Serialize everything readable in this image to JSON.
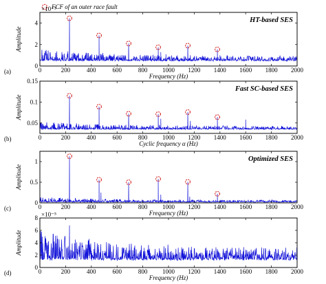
{
  "legend": {
    "label": "FCF of an outer race fault"
  },
  "chart_data": [
    {
      "type": "line",
      "panel_label": "(a)",
      "title": "HT-based SES",
      "xlabel": "Frequency (Hz)",
      "ylabel": "Amplitude",
      "scale_note": "×10⁻³",
      "xlim": [
        0,
        2000
      ],
      "ylim": [
        0,
        5
      ],
      "xticks": [
        0,
        200,
        400,
        600,
        800,
        1000,
        1200,
        1400,
        1600,
        1800,
        2000
      ],
      "yticks": [
        0,
        2,
        4
      ],
      "baseline": 0.5,
      "noise": 0.35,
      "peaks": [
        {
          "x": 230,
          "y": 4.45
        },
        {
          "x": 460,
          "y": 2.85
        },
        {
          "x": 690,
          "y": 2.1
        },
        {
          "x": 920,
          "y": 1.75
        },
        {
          "x": 1150,
          "y": 1.9
        },
        {
          "x": 1380,
          "y": 1.55
        }
      ],
      "extra_spikes": [
        {
          "x": 940,
          "y": 1.3
        },
        {
          "x": 980,
          "y": 1.1
        },
        {
          "x": 1170,
          "y": 1.0
        },
        {
          "x": 1400,
          "y": 1.0
        }
      ],
      "marker_indices": [
        0,
        1,
        2,
        3,
        4,
        5
      ]
    },
    {
      "type": "line",
      "panel_label": "(b)",
      "title": "Fast SC-based SES",
      "xlabel": "Cyclic frequency α (Hz)",
      "ylabel": "Amplitude",
      "scale_note": "",
      "xlim": [
        0,
        2000
      ],
      "ylim": [
        0.025,
        0.15
      ],
      "xticks": [
        0,
        200,
        400,
        600,
        800,
        1000,
        1200,
        1400,
        1600,
        1800,
        2000
      ],
      "yticks": [
        0.05,
        0.1,
        0.15
      ],
      "baseline": 0.035,
      "noise": 0.006,
      "peaks": [
        {
          "x": 230,
          "y": 0.115
        },
        {
          "x": 460,
          "y": 0.089
        },
        {
          "x": 690,
          "y": 0.072
        },
        {
          "x": 920,
          "y": 0.071
        },
        {
          "x": 1150,
          "y": 0.076
        },
        {
          "x": 1380,
          "y": 0.064
        }
      ],
      "extra_spikes": [
        {
          "x": 1600,
          "y": 0.058
        },
        {
          "x": 940,
          "y": 0.06
        },
        {
          "x": 1170,
          "y": 0.055
        }
      ],
      "marker_indices": [
        0,
        1,
        2,
        3,
        4,
        5
      ]
    },
    {
      "type": "line",
      "panel_label": "(c)",
      "title": "Optimized SES",
      "xlabel": "Frequency (Hz)",
      "ylabel": "Amplitude",
      "scale_note": "",
      "xlim": [
        0,
        2000
      ],
      "ylim": [
        0,
        1.25
      ],
      "xticks": [
        0,
        200,
        400,
        600,
        800,
        1000,
        1200,
        1400,
        1600,
        1800,
        2000
      ],
      "yticks": [
        0,
        0.5,
        1
      ],
      "baseline": 0.02,
      "noise": 0.04,
      "peaks": [
        {
          "x": 230,
          "y": 1.13
        },
        {
          "x": 460,
          "y": 0.56
        },
        {
          "x": 690,
          "y": 0.5
        },
        {
          "x": 920,
          "y": 0.58
        },
        {
          "x": 1150,
          "y": 0.51
        },
        {
          "x": 1380,
          "y": 0.22
        }
      ],
      "extra_spikes": [
        {
          "x": 475,
          "y": 0.25
        },
        {
          "x": 940,
          "y": 0.2
        },
        {
          "x": 1165,
          "y": 0.15
        }
      ],
      "marker_indices": [
        0,
        1,
        2,
        3,
        4,
        5
      ]
    },
    {
      "type": "line",
      "panel_label": "(d)",
      "title": "",
      "xlabel": "Frequency (Hz)",
      "ylabel": "Amplitude",
      "scale_note": "×10⁻⁵",
      "xlim": [
        0,
        2000
      ],
      "ylim": [
        0,
        8
      ],
      "xticks": [
        0,
        200,
        400,
        600,
        800,
        1000,
        1200,
        1400,
        1600,
        1800,
        2000
      ],
      "yticks": [
        0,
        2,
        4,
        6,
        8
      ],
      "baseline": 1.3,
      "noise": 1.5,
      "peaks": [
        {
          "x": 230,
          "y": 6.8
        }
      ],
      "extra_spikes": [
        {
          "x": 20,
          "y": 4.7
        },
        {
          "x": 60,
          "y": 3.6
        },
        {
          "x": 420,
          "y": 3.0
        },
        {
          "x": 700,
          "y": 2.8
        }
      ],
      "marker_indices": []
    }
  ]
}
